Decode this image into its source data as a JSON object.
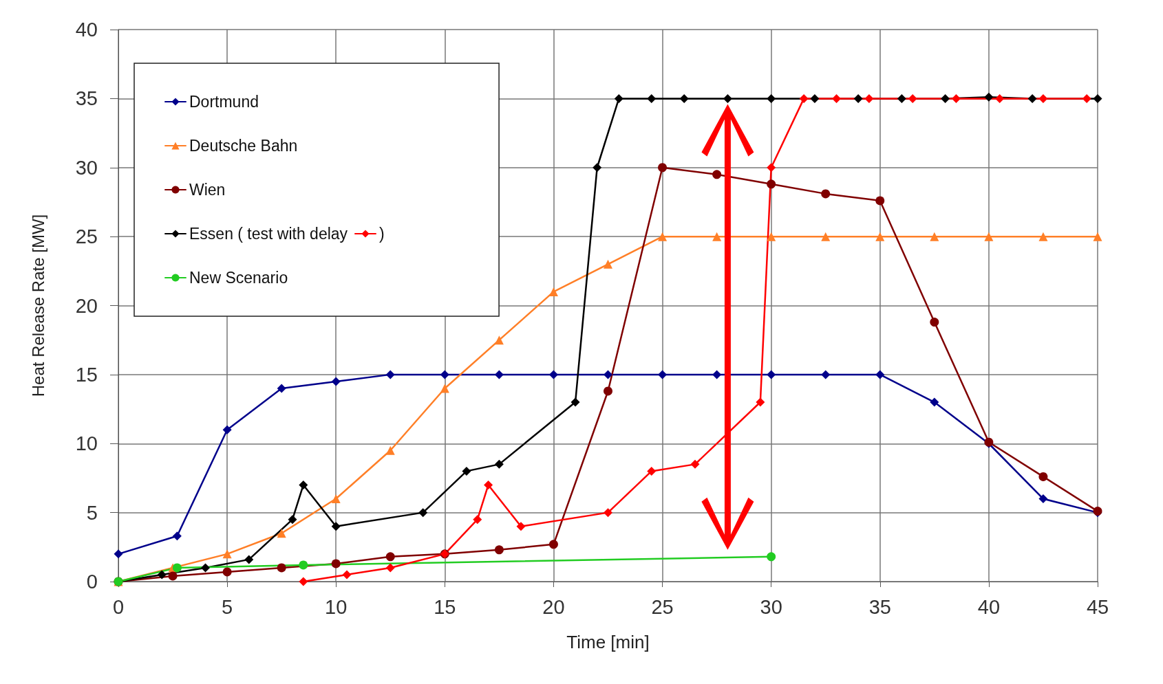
{
  "chart_data": {
    "type": "line",
    "xlabel": "Time [min]",
    "ylabel": "Heat Release Rate [MW]",
    "xlim": [
      0,
      45
    ],
    "xticks": [
      0,
      5,
      10,
      15,
      20,
      25,
      30,
      35,
      40,
      45
    ],
    "ylim": [
      0,
      40
    ],
    "yticks": [
      0,
      5,
      10,
      15,
      20,
      25,
      30,
      35,
      40
    ],
    "grid": true,
    "legend": "top left",
    "series": [
      {
        "name": "Dortmund",
        "color": "#00008b",
        "marker": "diamond",
        "x": [
          0,
          2.7,
          5,
          7.5,
          10,
          12.5,
          15,
          17.5,
          20,
          22.5,
          25,
          27.5,
          30,
          32.5,
          35,
          37.5,
          40,
          42.5,
          45
        ],
        "values": [
          2,
          3.3,
          11,
          14,
          14.5,
          15,
          15,
          15,
          15,
          15,
          15,
          15,
          15,
          15,
          15,
          13,
          10,
          6,
          5
        ]
      },
      {
        "name": "Deutsche Bahn",
        "color": "#ff7f27",
        "marker": "triangle",
        "x": [
          0,
          2.5,
          5,
          7.5,
          10,
          12.5,
          15,
          17.5,
          20,
          22.5,
          25,
          27.5,
          30,
          32.5,
          35,
          37.5,
          40,
          42.5,
          45
        ],
        "values": [
          0,
          1,
          2,
          3.5,
          6,
          9.5,
          14,
          17.5,
          21,
          23,
          25,
          25,
          25,
          25,
          25,
          25,
          25,
          25,
          25
        ]
      },
      {
        "name": "Wien",
        "color": "#800000",
        "marker": "circle",
        "x": [
          0,
          2.5,
          5,
          7.5,
          10,
          12.5,
          15,
          17.5,
          20,
          22.5,
          25,
          27.5,
          30,
          32.5,
          35,
          37.5,
          40,
          42.5,
          45
        ],
        "values": [
          0,
          0.4,
          0.7,
          1,
          1.3,
          1.8,
          2,
          2.3,
          2.7,
          13.8,
          30,
          29.5,
          28.8,
          28.1,
          27.6,
          18.8,
          10.1,
          7.6,
          5.1
        ]
      },
      {
        "name": "Essen ( test with delay",
        "color": "#000000",
        "marker": "diamond",
        "x": [
          0,
          2,
          4,
          6,
          8,
          8.5,
          10,
          14,
          16,
          17.5,
          21,
          22,
          23,
          24.5,
          26,
          28,
          30,
          32,
          34,
          36,
          38,
          40,
          42,
          45
        ],
        "values": [
          0,
          0.5,
          1,
          1.6,
          4.5,
          7,
          4,
          5,
          8,
          8.5,
          13,
          30,
          35,
          35,
          35,
          35,
          35,
          35,
          35,
          35,
          35,
          35.1,
          35,
          35
        ]
      },
      {
        "name": "New Scenario",
        "color": "#22cc22",
        "marker": "circle",
        "x": [
          0,
          2.7,
          8.5,
          30
        ],
        "values": [
          0,
          1,
          1.2,
          1.8
        ]
      },
      {
        "name": ")",
        "color": "#ff0000",
        "marker": "diamond",
        "x": [
          8.5,
          10.5,
          12.5,
          15,
          16.5,
          17,
          18.5,
          22.5,
          24.5,
          26.5,
          29.5,
          30,
          31.5,
          33,
          34.5,
          36.5,
          38.5,
          40.5,
          42.5,
          44.5
        ],
        "values": [
          0,
          0.5,
          1,
          2,
          4.5,
          7,
          4,
          5,
          8,
          8.5,
          13,
          30,
          35,
          35,
          35,
          35,
          35,
          35,
          35,
          35
        ]
      }
    ]
  }
}
